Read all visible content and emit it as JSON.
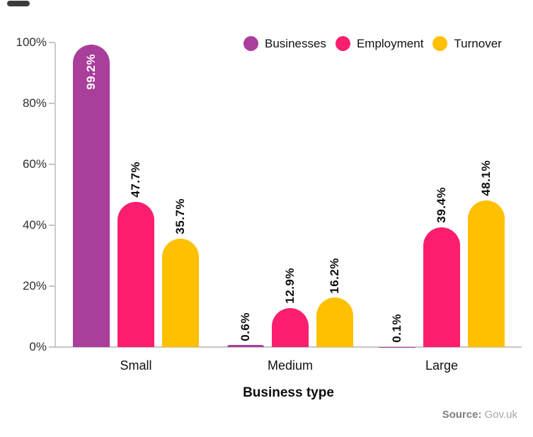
{
  "chart_data": {
    "type": "bar",
    "title": "",
    "categories": [
      "Small",
      "Medium",
      "Large"
    ],
    "series": [
      {
        "name": "Businesses",
        "color": "#A93E9B",
        "values": [
          99.2,
          0.6,
          0.1
        ]
      },
      {
        "name": "Employment",
        "color": "#FB1D6E",
        "values": [
          47.7,
          12.9,
          39.4
        ]
      },
      {
        "name": "Turnover",
        "color": "#FFC002",
        "values": [
          35.7,
          16.2,
          48.1
        ]
      }
    ],
    "value_label_suffix": "%",
    "xlabel": "Business type",
    "ylabel": "",
    "ylim": [
      0,
      100
    ],
    "yticks": [
      {
        "value": 0,
        "label": "0%"
      },
      {
        "value": 20,
        "label": "20%"
      },
      {
        "value": 40,
        "label": "40%"
      },
      {
        "value": 60,
        "label": "60%"
      },
      {
        "value": 80,
        "label": "80%"
      },
      {
        "value": 100,
        "label": "100%"
      }
    ],
    "grid": false,
    "legend_position": "top",
    "bar_style": "rounded-cap"
  },
  "source": {
    "prefix": "Source:",
    "name": "Gov.uk"
  },
  "colors": {
    "axis": "#CBCBCB",
    "tick_text": "#2F2F2F",
    "label_text": "#0D0D0D",
    "inside_label_text": "#FFFFFF"
  }
}
